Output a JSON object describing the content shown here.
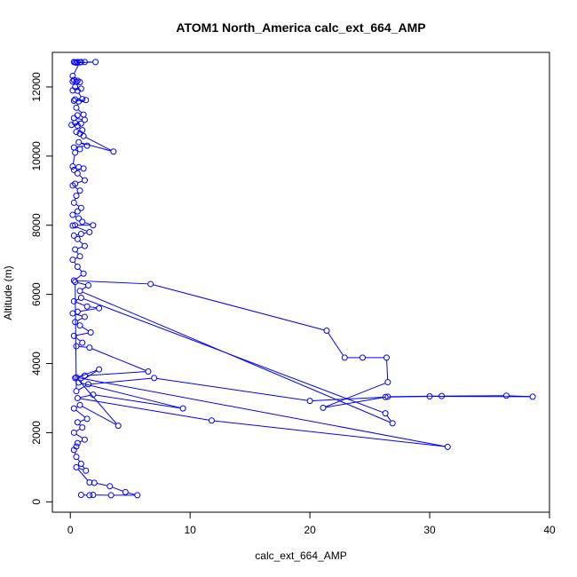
{
  "chart_data": {
    "type": "scatter",
    "title": "ATOM1 North_America calc_ext_664_AMP",
    "xlabel": "calc_ext_664_AMP",
    "ylabel": "Altitude (m)",
    "xlim": [
      -1.5,
      40
    ],
    "ylim": [
      -300,
      13000
    ],
    "x_ticks": [
      0,
      10,
      20,
      30,
      40
    ],
    "y_ticks": [
      0,
      2000,
      4000,
      6000,
      8000,
      10000,
      12000
    ],
    "grid": false,
    "legend": "none",
    "color": "#0000ff",
    "marker": "open-circle",
    "connect_points": true,
    "series": [
      {
        "values": [
          [
            0.6,
            12720
          ],
          [
            0.3,
            12720
          ],
          [
            0.9,
            12720
          ],
          [
            0.4,
            12710
          ],
          [
            1.2,
            12720
          ],
          [
            2.1,
            12720
          ],
          [
            0.5,
            12700
          ],
          [
            0.8,
            12710
          ],
          [
            0.2,
            12320
          ],
          [
            0.3,
            12200
          ],
          [
            0.6,
            12180
          ],
          [
            0.2,
            12160
          ],
          [
            0.5,
            12150
          ],
          [
            0.8,
            12140
          ],
          [
            0.4,
            12000
          ],
          [
            0.9,
            11950
          ],
          [
            0.2,
            11900
          ],
          [
            0.6,
            11890
          ],
          [
            1.0,
            11650
          ],
          [
            0.4,
            11640
          ],
          [
            0.3,
            11600
          ],
          [
            1.3,
            11620
          ],
          [
            0.7,
            11580
          ],
          [
            0.5,
            11400
          ],
          [
            1.1,
            11200
          ],
          [
            0.6,
            11180
          ],
          [
            0.3,
            11100
          ],
          [
            1.2,
            11050
          ],
          [
            0.4,
            10960
          ],
          [
            0.9,
            10940
          ],
          [
            0.1,
            10900
          ],
          [
            0.6,
            10880
          ],
          [
            1.0,
            10750
          ],
          [
            0.5,
            10700
          ],
          [
            0.8,
            10650
          ],
          [
            1.1,
            10580
          ],
          [
            3.6,
            10130
          ],
          [
            0.7,
            10400
          ],
          [
            1.4,
            10300
          ],
          [
            0.3,
            10250
          ],
          [
            0.8,
            10200
          ],
          [
            0.4,
            10100
          ],
          [
            0.2,
            9700
          ],
          [
            0.7,
            9680
          ],
          [
            1.1,
            9640
          ],
          [
            0.3,
            9600
          ],
          [
            0.6,
            9500
          ],
          [
            1.2,
            9300
          ],
          [
            0.4,
            9200
          ],
          [
            0.2,
            9150
          ],
          [
            0.8,
            9000
          ],
          [
            0.5,
            8850
          ],
          [
            0.3,
            8650
          ],
          [
            0.9,
            8500
          ],
          [
            0.6,
            8400
          ],
          [
            0.2,
            8300
          ],
          [
            0.7,
            8200
          ],
          [
            1.0,
            8100
          ],
          [
            1.9,
            8000
          ],
          [
            0.4,
            8000
          ],
          [
            0.2,
            7990
          ],
          [
            1.6,
            7800
          ],
          [
            0.9,
            7750
          ],
          [
            0.3,
            7700
          ],
          [
            0.6,
            7600
          ],
          [
            1.2,
            7400
          ],
          [
            0.4,
            7300
          ],
          [
            0.8,
            7100
          ],
          [
            0.2,
            7000
          ],
          [
            0.6,
            6800
          ],
          [
            1.1,
            6600
          ],
          [
            0.3,
            6400
          ],
          [
            6.7,
            6300
          ],
          [
            21.4,
            4950
          ],
          [
            22.9,
            4170
          ],
          [
            24.4,
            4170
          ],
          [
            26.4,
            4170
          ],
          [
            26.5,
            3460
          ],
          [
            21.1,
            2720
          ],
          [
            26.5,
            3040
          ],
          [
            31.0,
            3060
          ],
          [
            36.4,
            3070
          ],
          [
            38.6,
            3040
          ],
          [
            30.0,
            3050
          ],
          [
            26.3,
            3030
          ],
          [
            20.0,
            2920
          ],
          [
            7.0,
            3580
          ],
          [
            1.5,
            3400
          ],
          [
            0.5,
            3200
          ],
          [
            0.4,
            6360
          ],
          [
            1.5,
            6260
          ],
          [
            0.8,
            6100
          ],
          [
            26.9,
            2270
          ],
          [
            26.3,
            2560
          ],
          [
            0.9,
            5900
          ],
          [
            0.3,
            5800
          ],
          [
            1.4,
            5650
          ],
          [
            2.4,
            5600
          ],
          [
            0.6,
            5500
          ],
          [
            0.2,
            5450
          ],
          [
            1.2,
            5350
          ],
          [
            0.4,
            5200
          ],
          [
            0.8,
            5100
          ],
          [
            1.7,
            4900
          ],
          [
            0.3,
            4800
          ],
          [
            1.0,
            4600
          ],
          [
            0.5,
            4500
          ],
          [
            1.6,
            4460
          ],
          [
            6.5,
            3770
          ],
          [
            1.2,
            3650
          ],
          [
            0.4,
            3580
          ],
          [
            2.4,
            3830
          ],
          [
            0.7,
            3450
          ],
          [
            9.4,
            2700
          ],
          [
            1.9,
            3100
          ],
          [
            0.6,
            3000
          ],
          [
            11.8,
            2350
          ],
          [
            31.5,
            1590
          ],
          [
            0.5,
            3600
          ],
          [
            4.0,
            2200
          ],
          [
            0.8,
            2800
          ],
          [
            0.3,
            2700
          ],
          [
            1.4,
            2400
          ],
          [
            0.6,
            2300
          ],
          [
            1.0,
            2150
          ],
          [
            0.3,
            2000
          ],
          [
            1.2,
            1800
          ],
          [
            0.6,
            1700
          ],
          [
            0.5,
            1600
          ],
          [
            0.3,
            1500
          ],
          [
            0.5,
            1300
          ],
          [
            0.9,
            1100
          ],
          [
            1.3,
            900
          ],
          [
            0.5,
            1000
          ],
          [
            1.6,
            560
          ],
          [
            2.0,
            550
          ],
          [
            3.3,
            450
          ],
          [
            4.6,
            280
          ],
          [
            5.6,
            190
          ],
          [
            3.4,
            190
          ],
          [
            1.9,
            200
          ],
          [
            1.6,
            190
          ],
          [
            0.9,
            200
          ]
        ]
      }
    ]
  }
}
